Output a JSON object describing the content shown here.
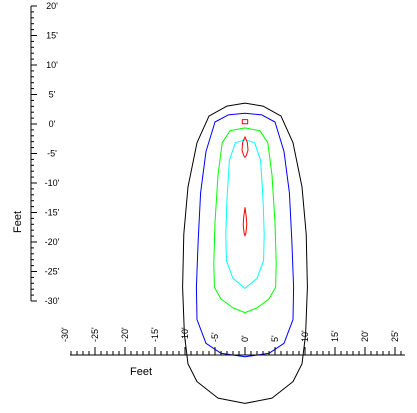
{
  "chart_data": {
    "type": "contour",
    "y_axis": {
      "label": "Feet",
      "range": [
        -30,
        20
      ],
      "ticks": [
        {
          "value": 20,
          "label": "20'"
        },
        {
          "value": 15,
          "label": "15'"
        },
        {
          "value": 10,
          "label": "10'"
        },
        {
          "value": 5,
          "label": "5'"
        },
        {
          "value": 0,
          "label": "0'"
        },
        {
          "value": -5,
          "label": "-5'"
        },
        {
          "value": -10,
          "label": "-10'"
        },
        {
          "value": -15,
          "label": "-15'"
        },
        {
          "value": -20,
          "label": "-20'"
        },
        {
          "value": -25,
          "label": "-25'"
        },
        {
          "value": -30,
          "label": "-30'"
        }
      ]
    },
    "x_axis": {
      "label": "Feet",
      "range": [
        -30,
        25
      ],
      "ticks": [
        {
          "value": -30,
          "label": "-30'"
        },
        {
          "value": -25,
          "label": "-25'"
        },
        {
          "value": -20,
          "label": "-20'"
        },
        {
          "value": -15,
          "label": "-15'"
        },
        {
          "value": -10,
          "label": "-10'"
        },
        {
          "value": -5,
          "label": "-5'"
        },
        {
          "value": 0,
          "label": "0'"
        },
        {
          "value": 5,
          "label": "5'"
        },
        {
          "value": 10,
          "label": "10'"
        },
        {
          "value": 15,
          "label": "15'"
        },
        {
          "value": 20,
          "label": "20'"
        },
        {
          "value": 25,
          "label": "25'"
        }
      ]
    },
    "contours": [
      {
        "color": "#000000",
        "points": [
          [
            0,
            3.2
          ],
          [
            3,
            2.7
          ],
          [
            6,
            1
          ],
          [
            8,
            -3.5
          ],
          [
            9.5,
            -11
          ],
          [
            10.2,
            -19
          ],
          [
            10.4,
            -28
          ],
          [
            10.1,
            -36
          ],
          [
            9.5,
            -41
          ],
          [
            8,
            -44
          ],
          [
            4.5,
            -46.8
          ],
          [
            0,
            -47.7
          ],
          [
            -4.5,
            -46.8
          ],
          [
            -8,
            -44
          ],
          [
            -9.5,
            -41
          ],
          [
            -10.1,
            -36
          ],
          [
            -10.4,
            -28
          ],
          [
            -10.2,
            -19
          ],
          [
            -9.5,
            -11
          ],
          [
            -8,
            -3.5
          ],
          [
            -6,
            1
          ],
          [
            -3,
            2.7
          ]
        ]
      },
      {
        "color": "#0000ff",
        "points": [
          [
            0,
            1.5
          ],
          [
            2.8,
            1.2
          ],
          [
            5,
            0
          ],
          [
            6.5,
            -5
          ],
          [
            7.4,
            -12
          ],
          [
            7.8,
            -20
          ],
          [
            8.1,
            -28
          ],
          [
            8,
            -33.5
          ],
          [
            6.5,
            -37.5
          ],
          [
            4,
            -39.2
          ],
          [
            0,
            -39.8
          ],
          [
            -4,
            -39.2
          ],
          [
            -6.5,
            -37.5
          ],
          [
            -8,
            -33.5
          ],
          [
            -8.1,
            -28
          ],
          [
            -7.8,
            -20
          ],
          [
            -7.4,
            -12
          ],
          [
            -6.5,
            -5
          ],
          [
            -5,
            0
          ],
          [
            -2.8,
            1.2
          ]
        ]
      },
      {
        "color": "#00ff00",
        "points": [
          [
            0,
            -1
          ],
          [
            2.5,
            -1.5
          ],
          [
            3.8,
            -3.5
          ],
          [
            4.5,
            -9
          ],
          [
            5,
            -17
          ],
          [
            5.2,
            -24
          ],
          [
            5.1,
            -28
          ],
          [
            4,
            -30
          ],
          [
            2,
            -31.5
          ],
          [
            0,
            -32.3
          ],
          [
            -2,
            -31.5
          ],
          [
            -4,
            -30
          ],
          [
            -5.1,
            -28
          ],
          [
            -5.2,
            -24
          ],
          [
            -5,
            -17
          ],
          [
            -4.5,
            -9
          ],
          [
            -3.8,
            -3.5
          ],
          [
            -2.5,
            -1.5
          ]
        ]
      },
      {
        "color": "#00ffff",
        "points": [
          [
            0,
            -3
          ],
          [
            1.6,
            -3.5
          ],
          [
            2.6,
            -6.5
          ],
          [
            3,
            -13
          ],
          [
            3.2,
            -19
          ],
          [
            3.1,
            -23.5
          ],
          [
            2,
            -26.5
          ],
          [
            0,
            -28.2
          ],
          [
            -2,
            -26.5
          ],
          [
            -3.1,
            -23.5
          ],
          [
            -3.2,
            -19
          ],
          [
            -3,
            -13
          ],
          [
            -2.6,
            -6.5
          ],
          [
            -1.6,
            -3.5
          ]
        ]
      },
      {
        "color": "#ff0000",
        "points": [
          [
            0,
            -2.5
          ],
          [
            0.4,
            -3.5
          ],
          [
            0.5,
            -4.8
          ],
          [
            0.2,
            -5.7
          ],
          [
            0,
            -6
          ],
          [
            -0.2,
            -5.7
          ],
          [
            -0.5,
            -4.8
          ],
          [
            -0.4,
            -3.5
          ]
        ]
      },
      {
        "color": "#ff0000",
        "points": [
          [
            0,
            -14.5
          ],
          [
            0.2,
            -16
          ],
          [
            0.3,
            -17.4
          ],
          [
            0.15,
            -18.8
          ],
          [
            0,
            -19.3
          ],
          [
            -0.15,
            -18.8
          ],
          [
            -0.3,
            -17.4
          ],
          [
            -0.2,
            -16
          ]
        ]
      },
      {
        "color": "#ff0000",
        "points": [
          [
            -0.45,
            0.4
          ],
          [
            0.45,
            0.4
          ],
          [
            0.45,
            -0.3
          ],
          [
            -0.45,
            -0.3
          ]
        ]
      }
    ]
  }
}
